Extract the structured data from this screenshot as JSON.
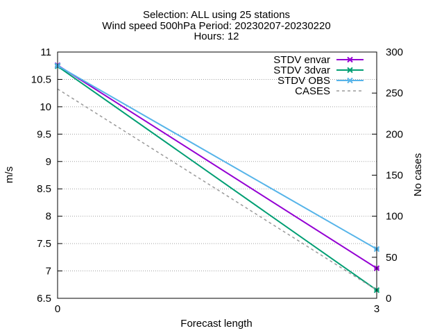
{
  "chart_data": {
    "type": "line",
    "title_lines": [
      "Selection: ALL using    25 stations",
      "Wind speed 500hPa   Period: 20230207-20230220",
      "Hours: 12"
    ],
    "xlabel": "Forecast length",
    "ylabel": "m/s",
    "y2label": "No cases",
    "x": [
      0,
      3
    ],
    "xticks": [
      "0",
      "3"
    ],
    "xlim": [
      0,
      3
    ],
    "ylim": [
      6.5,
      11
    ],
    "yticks": [
      "6.5",
      "7",
      "7.5",
      "8",
      "8.5",
      "9",
      "9.5",
      "10",
      "10.5",
      "11"
    ],
    "y2lim": [
      0,
      300
    ],
    "y2ticks": [
      "0",
      "50",
      "100",
      "150",
      "200",
      "250",
      "300"
    ],
    "grid": true,
    "legend_position": "top-right",
    "series": [
      {
        "name": "STDV envar",
        "axis": "y",
        "values": [
          10.76,
          7.05
        ],
        "color": "#9400d3",
        "style": "solid",
        "marker": "x-cross"
      },
      {
        "name": "STDV 3dvar",
        "axis": "y",
        "values": [
          10.74,
          6.65
        ],
        "color": "#009e73",
        "style": "solid",
        "marker": "x-cross"
      },
      {
        "name": "STDV OBS",
        "axis": "y",
        "values": [
          10.75,
          7.4
        ],
        "color": "#56b4e9",
        "style": "solid",
        "marker": "x-cross"
      },
      {
        "name": "CASES",
        "axis": "y2",
        "values": [
          255,
          10
        ],
        "color": "#999999",
        "style": "dashed",
        "marker": "none"
      }
    ]
  }
}
